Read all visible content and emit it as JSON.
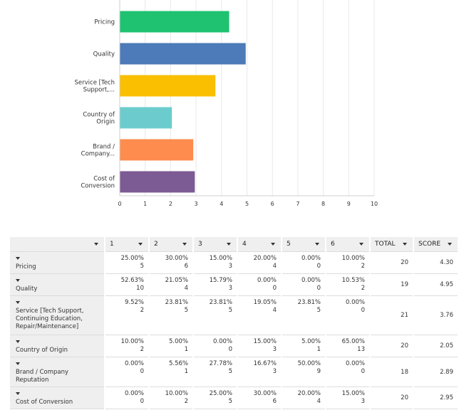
{
  "chart_data": {
    "type": "bar",
    "orientation": "horizontal",
    "categories": [
      "Pricing",
      "Quality",
      "Service [Tech Support,...",
      "Country of Origin",
      "Brand / Company...",
      "Cost of Conversion"
    ],
    "category_label_lines": [
      [
        "Pricing"
      ],
      [
        "Quality"
      ],
      [
        "Service [Tech",
        "Support,..."
      ],
      [
        "Country of",
        "Origin"
      ],
      [
        "Brand /",
        "Company..."
      ],
      [
        "Cost of",
        "Conversion"
      ]
    ],
    "values": [
      4.3,
      4.95,
      3.76,
      2.05,
      2.89,
      2.95
    ],
    "colors": [
      "#1ec270",
      "#4d7ab8",
      "#f9bf00",
      "#6ccccd",
      "#ff8c4f",
      "#7c5a94"
    ],
    "xlim": [
      0,
      10
    ],
    "xticks": [
      "0",
      "1",
      "2",
      "3",
      "4",
      "5",
      "6",
      "7",
      "8",
      "9",
      "10"
    ],
    "grid": true,
    "title": "",
    "xlabel": "",
    "ylabel": ""
  },
  "table": {
    "header_cells": [
      "",
      "1",
      "2",
      "3",
      "4",
      "5",
      "6",
      "TOTAL",
      "SCORE"
    ],
    "rows": [
      {
        "label": "Pricing",
        "cells": [
          [
            "25.00%",
            "5"
          ],
          [
            "30.00%",
            "6"
          ],
          [
            "15.00%",
            "3"
          ],
          [
            "20.00%",
            "4"
          ],
          [
            "0.00%",
            "0"
          ],
          [
            "10.00%",
            "2"
          ]
        ],
        "total": "20",
        "score": "4.30"
      },
      {
        "label": "Quality",
        "cells": [
          [
            "52.63%",
            "10"
          ],
          [
            "21.05%",
            "4"
          ],
          [
            "15.79%",
            "3"
          ],
          [
            "0.00%",
            "0"
          ],
          [
            "0.00%",
            "0"
          ],
          [
            "10.53%",
            "2"
          ]
        ],
        "total": "19",
        "score": "4.95"
      },
      {
        "label": "Service [Tech Support, Continuing Education, Repair/Maintenance]",
        "cells": [
          [
            "9.52%",
            "2"
          ],
          [
            "23.81%",
            "5"
          ],
          [
            "23.81%",
            "5"
          ],
          [
            "19.05%",
            "4"
          ],
          [
            "23.81%",
            "5"
          ],
          [
            "0.00%",
            "0"
          ]
        ],
        "total": "21",
        "score": "3.76"
      },
      {
        "label": "Country of Origin",
        "cells": [
          [
            "10.00%",
            "2"
          ],
          [
            "5.00%",
            "1"
          ],
          [
            "0.00%",
            "0"
          ],
          [
            "15.00%",
            "3"
          ],
          [
            "5.00%",
            "1"
          ],
          [
            "65.00%",
            "13"
          ]
        ],
        "total": "20",
        "score": "2.05"
      },
      {
        "label": "Brand / Company Reputation",
        "cells": [
          [
            "0.00%",
            "0"
          ],
          [
            "5.56%",
            "1"
          ],
          [
            "27.78%",
            "5"
          ],
          [
            "16.67%",
            "3"
          ],
          [
            "50.00%",
            "9"
          ],
          [
            "0.00%",
            "0"
          ]
        ],
        "total": "18",
        "score": "2.89"
      },
      {
        "label": "Cost of Conversion",
        "cells": [
          [
            "0.00%",
            "0"
          ],
          [
            "10.00%",
            "2"
          ],
          [
            "25.00%",
            "5"
          ],
          [
            "30.00%",
            "6"
          ],
          [
            "20.00%",
            "4"
          ],
          [
            "15.00%",
            "3"
          ]
        ],
        "total": "20",
        "score": "2.95"
      }
    ]
  }
}
